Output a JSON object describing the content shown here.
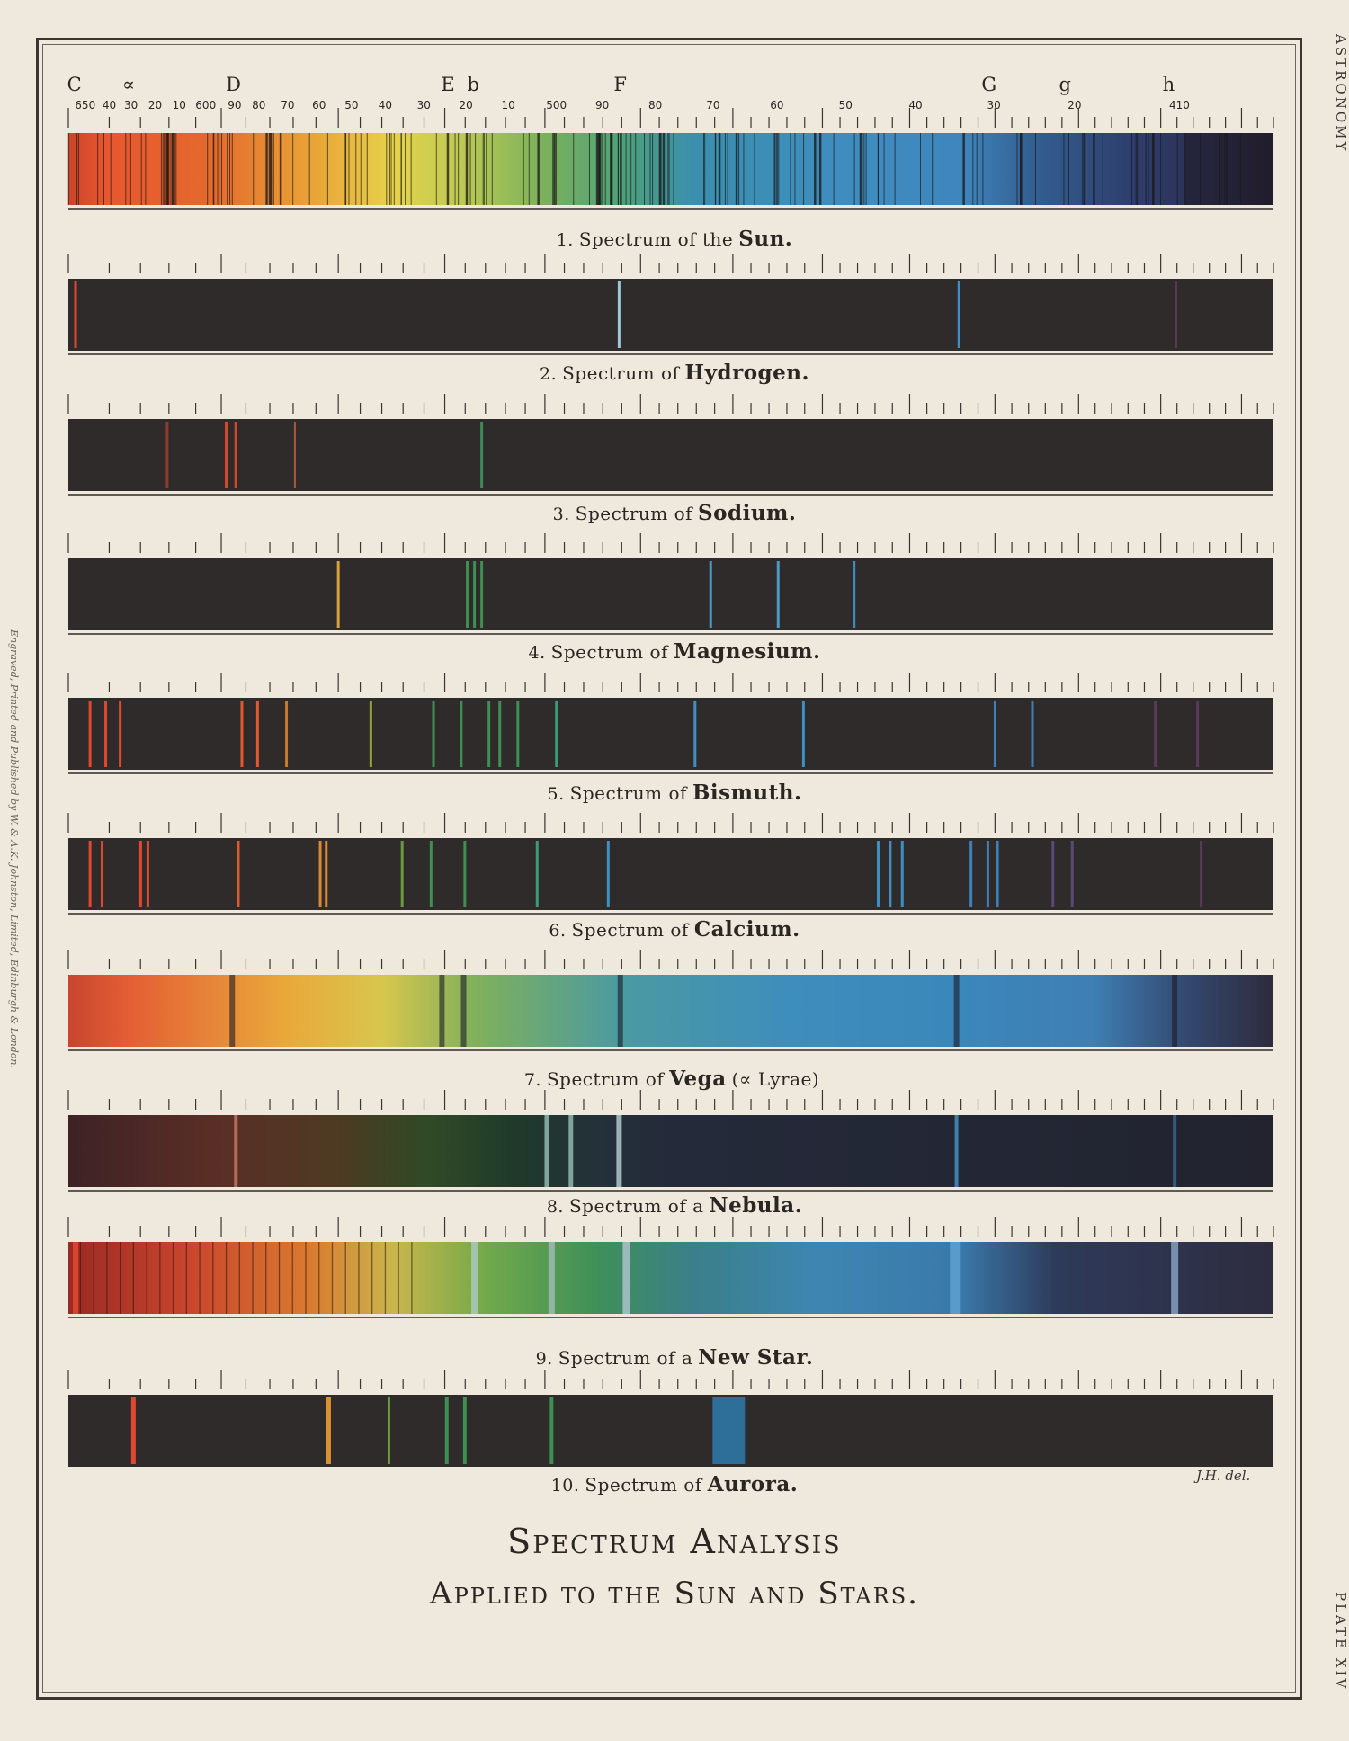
{
  "margin_text": {
    "right_top": "ASTRONOMY",
    "right_bottom": "PLATE XIV",
    "left": "Engraved, Printed and Published by W. & A.K. Johnston, Limited, Edinburgh & London."
  },
  "scale": {
    "fraunhofer_letters": [
      "C",
      "∝",
      "D",
      "E",
      "b",
      "F",
      "G",
      "g",
      "h"
    ],
    "numbers": [
      "650",
      "40",
      "30",
      "20",
      "10",
      "600",
      "90",
      "80",
      "70",
      "60",
      "50",
      "40",
      "30",
      "20",
      "10",
      "500",
      "90",
      "80",
      "70",
      "60",
      "50",
      "40",
      "30",
      "20",
      "410"
    ]
  },
  "spectra": [
    {
      "num": "1.",
      "prefix": "Spectrum of the",
      "element": "Sun.",
      "kind": "solar"
    },
    {
      "num": "2.",
      "prefix": "Spectrum of",
      "element": "Hydrogen.",
      "kind": "lines",
      "lines": [
        [
          0.006,
          "#e0472f",
          3
        ],
        [
          0.457,
          "#9cc8d8",
          3
        ],
        [
          0.739,
          "#3f8fc2",
          3
        ],
        [
          0.919,
          "#5a3a52",
          3
        ]
      ]
    },
    {
      "num": "3.",
      "prefix": "Spectrum of",
      "element": "Sodium.",
      "kind": "lines",
      "lines": [
        [
          0.082,
          "#8c3a2f",
          3
        ],
        [
          0.131,
          "#d4482f",
          3
        ],
        [
          0.139,
          "#d4482f",
          3
        ],
        [
          0.188,
          "#a65a3a",
          2
        ],
        [
          0.343,
          "#3c8a5a",
          3
        ]
      ]
    },
    {
      "num": "4.",
      "prefix": "Spectrum of",
      "element": "Magnesium.",
      "kind": "lines",
      "lines": [
        [
          0.224,
          "#d9a040",
          3
        ],
        [
          0.331,
          "#3d8f52",
          3
        ],
        [
          0.337,
          "#3d8f52",
          3
        ],
        [
          0.343,
          "#3d8f52",
          3
        ],
        [
          0.533,
          "#4a9ac4",
          3
        ],
        [
          0.589,
          "#4a9ac4",
          3
        ],
        [
          0.652,
          "#3e8cbd",
          3
        ]
      ]
    },
    {
      "num": "5.",
      "prefix": "Spectrum of",
      "element": "Bismuth.",
      "kind": "lines",
      "lines": [
        [
          0.018,
          "#e0472f",
          3
        ],
        [
          0.031,
          "#e0472f",
          3
        ],
        [
          0.043,
          "#e0472f",
          3
        ],
        [
          0.144,
          "#e05a2f",
          3
        ],
        [
          0.157,
          "#e05a2f",
          3
        ],
        [
          0.181,
          "#c77a2f",
          3
        ],
        [
          0.251,
          "#8fa33a",
          3
        ],
        [
          0.303,
          "#3d8f52",
          3
        ],
        [
          0.326,
          "#3d8f52",
          3
        ],
        [
          0.349,
          "#3d8f52",
          3
        ],
        [
          0.358,
          "#3d8f52",
          3
        ],
        [
          0.373,
          "#3d8f52",
          3
        ],
        [
          0.405,
          "#3a9a7a",
          3
        ],
        [
          0.52,
          "#3e8fc2",
          3
        ],
        [
          0.61,
          "#3e8fc2",
          3
        ],
        [
          0.769,
          "#3e7fb8",
          3
        ],
        [
          0.8,
          "#3e7fb8",
          3
        ],
        [
          0.902,
          "#5a3a5a",
          3
        ],
        [
          0.937,
          "#5a3a5a",
          3
        ]
      ]
    },
    {
      "num": "6.",
      "prefix": "Spectrum of",
      "element": "Calcium.",
      "kind": "lines",
      "lines": [
        [
          0.018,
          "#e0472f",
          3
        ],
        [
          0.028,
          "#e0472f",
          3
        ],
        [
          0.06,
          "#e0472f",
          3
        ],
        [
          0.066,
          "#e0472f",
          3
        ],
        [
          0.141,
          "#e05a2f",
          3
        ],
        [
          0.209,
          "#d98a35",
          3
        ],
        [
          0.214,
          "#d98a35",
          3
        ],
        [
          0.277,
          "#6a9a3a",
          3
        ],
        [
          0.301,
          "#3d8f52",
          3
        ],
        [
          0.329,
          "#3d8f52",
          3
        ],
        [
          0.389,
          "#3a9a7a",
          3
        ],
        [
          0.448,
          "#3e8fc2",
          3
        ],
        [
          0.672,
          "#3e8fc2",
          3
        ],
        [
          0.682,
          "#3e8fc2",
          3
        ],
        [
          0.692,
          "#3e8fc2",
          3
        ],
        [
          0.749,
          "#3e7fb8",
          3
        ],
        [
          0.763,
          "#3e7fb8",
          3
        ],
        [
          0.771,
          "#3e7fb8",
          3
        ],
        [
          0.817,
          "#5a4a7a",
          3
        ],
        [
          0.833,
          "#5a4a7a",
          3
        ],
        [
          0.94,
          "#5a3a5a",
          3
        ]
      ]
    },
    {
      "num": "7.",
      "prefix": "Spectrum of",
      "element": "Vega",
      "extra": "(∝ Lyrae)",
      "kind": "vega"
    },
    {
      "num": "8.",
      "prefix": "Spectrum of a",
      "element": "Nebula.",
      "kind": "nebula"
    },
    {
      "num": "9.",
      "prefix": "Spectrum of a",
      "element": "New Star.",
      "kind": "nova"
    },
    {
      "num": "10.",
      "prefix": "Spectrum of",
      "element": "Aurora.",
      "kind": "lines",
      "lines": [
        [
          0.054,
          "#e0472f",
          5
        ],
        [
          0.216,
          "#d9922f",
          5
        ],
        [
          0.266,
          "#6a9a3a",
          3
        ],
        [
          0.314,
          "#3d8f52",
          4
        ],
        [
          0.329,
          "#3d8f52",
          4
        ],
        [
          0.401,
          "#3d8f52",
          4
        ],
        [
          0.548,
          "#2e6f9a",
          36
        ]
      ]
    }
  ],
  "title": {
    "line1": "Spectrum Analysis",
    "line2": "Applied to the Sun and Stars."
  },
  "credit": "J.H. del."
}
